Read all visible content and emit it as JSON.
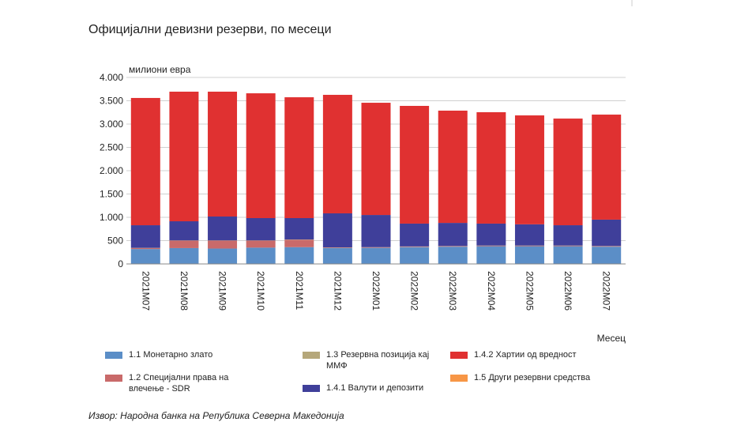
{
  "chart_data": {
    "type": "stacked_bar",
    "title": "Официјални девизни резерви, по месеци",
    "y_label": "милиони евра",
    "x_label": "Месец",
    "source": "Извор: Народна банка на Република Северна Македонија",
    "categories": [
      "2021M07",
      "2021M08",
      "2021M09",
      "2021M10",
      "2021M11",
      "2021M12",
      "2022M01",
      "2022M02",
      "2022M03",
      "2022M04",
      "2022M05",
      "2022M06",
      "2022M07"
    ],
    "series": [
      {
        "name": "1.1 Монетарно злато",
        "color": "#5b8ec7",
        "values": [
          320,
          340,
          330,
          350,
          360,
          340,
          345,
          360,
          370,
          380,
          380,
          380,
          370
        ]
      },
      {
        "name": "1.2 Специјални права на влечење - SDR",
        "color": "#c96a6a",
        "values": [
          20,
          160,
          170,
          150,
          160,
          10,
          10,
          10,
          10,
          10,
          10,
          10,
          10
        ]
      },
      {
        "name": "1.3 Резервна позиција кај ММФ",
        "color": "#b5a77a",
        "values": [
          5,
          5,
          5,
          5,
          5,
          5,
          5,
          5,
          5,
          5,
          5,
          5,
          5
        ]
      },
      {
        "name": "1.4.1 Валути и депозити",
        "color": "#3f3f9a",
        "values": [
          485,
          410,
          512,
          478,
          458,
          730,
          690,
          490,
          495,
          470,
          455,
          435,
          565
        ]
      },
      {
        "name": "1.4.2 Хартии од вредност",
        "color": "#e03131",
        "values": [
          2730,
          2780,
          2678,
          2677,
          2592,
          2542,
          2407,
          2525,
          2408,
          2389,
          2336,
          2288,
          2253
        ]
      },
      {
        "name": "1.5 Други резервни средства",
        "color": "#f79646",
        "values": [
          0,
          0,
          0,
          0,
          0,
          0,
          0,
          0,
          0,
          0,
          0,
          0,
          0
        ]
      }
    ],
    "ylim": [
      0,
      4000
    ],
    "yticks": [
      0,
      500,
      {
        "value": 1000,
        "label": "1.000"
      },
      {
        "value": 1500,
        "label": "1.500"
      },
      {
        "value": 2000,
        "label": "2.000"
      },
      {
        "value": 2500,
        "label": "2.500"
      },
      {
        "value": 3000,
        "label": "3.000"
      },
      {
        "value": 3500,
        "label": "3.500"
      },
      {
        "value": 4000,
        "label": "4.000"
      }
    ],
    "grid": true
  }
}
